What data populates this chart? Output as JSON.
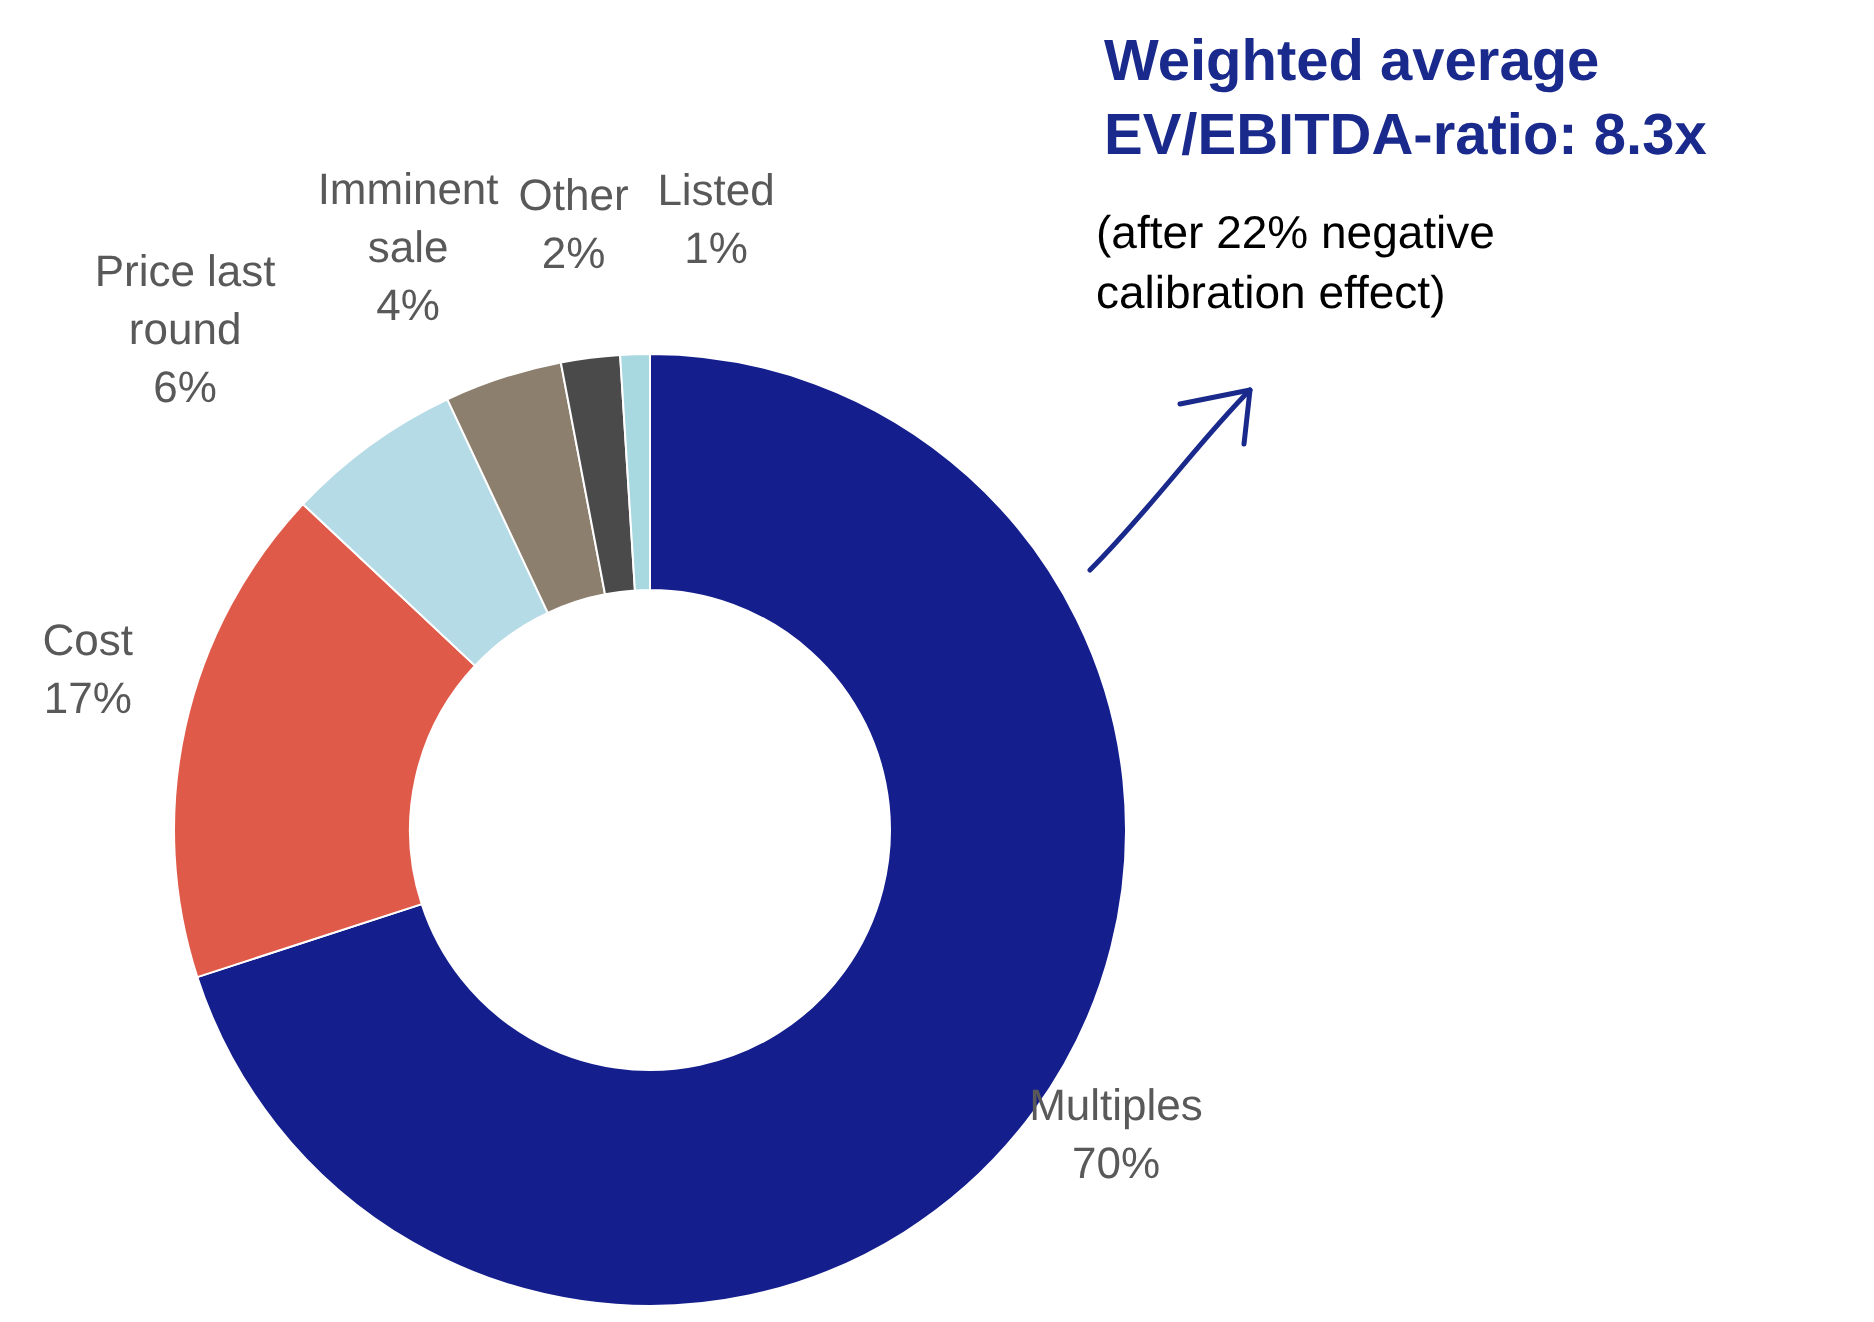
{
  "chart_data": {
    "type": "donut",
    "title": "Weighted average EV/EBITDA-ratio: 8.3x",
    "subtitle": "(after 22% negative calibration effect)",
    "categories": [
      "Multiples",
      "Cost",
      "Price last round",
      "Imminent sale",
      "Other",
      "Listed"
    ],
    "values": [
      70,
      17,
      6,
      4,
      2,
      1
    ],
    "value_labels": [
      "70%",
      "17%",
      "6%",
      "4%",
      "2%",
      "1%"
    ],
    "colors": [
      "#141e8c",
      "#e05a4a",
      "#b5dbe6",
      "#8c7f6e",
      "#4a4a4a",
      "#a8d8e0"
    ]
  }
}
